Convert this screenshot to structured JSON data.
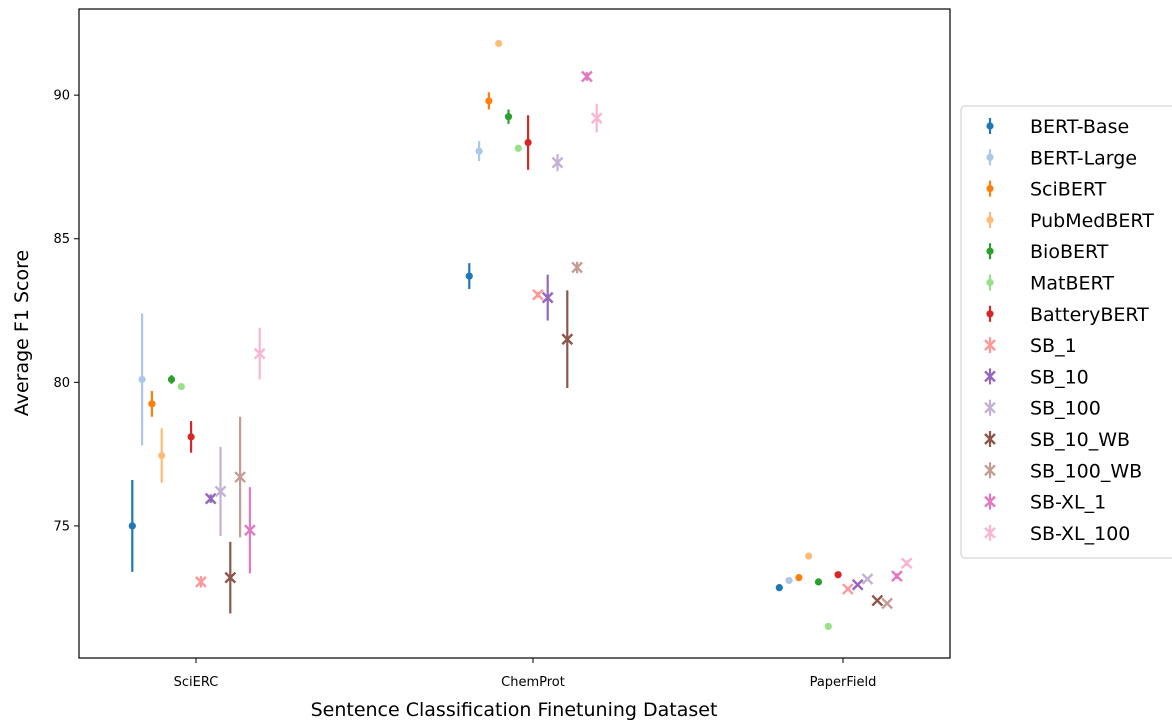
{
  "chart_data": {
    "type": "scatter",
    "title": "",
    "xlabel": "Sentence Classification Finetuning Dataset",
    "ylabel": "Average F1 Score",
    "categories": [
      "SciERC",
      "ChemProt",
      "PaperField"
    ],
    "ylim": [
      70.4,
      93.0
    ],
    "yticks": [
      75,
      80,
      85,
      90
    ],
    "grid": false,
    "legend_position": "right",
    "series": [
      {
        "name": "BERT-Base",
        "color": "#1f77b4",
        "marker": "circle",
        "values": [
          75.0,
          83.7,
          72.85
        ],
        "errors": [
          1.6,
          0.45,
          0.05
        ]
      },
      {
        "name": "BERT-Large",
        "color": "#aec7e8",
        "marker": "circle",
        "values": [
          80.1,
          88.05,
          73.1
        ],
        "errors": [
          2.3,
          0.35,
          0.05
        ]
      },
      {
        "name": "SciBERT",
        "color": "#ff7f0e",
        "marker": "circle",
        "values": [
          79.25,
          89.8,
          73.2
        ],
        "errors": [
          0.45,
          0.3,
          0.05
        ]
      },
      {
        "name": "PubMedBERT",
        "color": "#ffbb78",
        "marker": "circle",
        "values": [
          77.45,
          91.8,
          73.95
        ],
        "errors": [
          0.95,
          0.05,
          0.05
        ]
      },
      {
        "name": "BioBERT",
        "color": "#2ca02c",
        "marker": "circle",
        "values": [
          80.1,
          89.25,
          73.05
        ],
        "errors": [
          0.15,
          0.25,
          0.05
        ]
      },
      {
        "name": "MatBERT",
        "color": "#98df8a",
        "marker": "circle",
        "values": [
          79.85,
          88.15,
          71.5
        ],
        "errors": [
          0.05,
          0.05,
          0.05
        ]
      },
      {
        "name": "BatteryBERT",
        "color": "#d62728",
        "marker": "circle",
        "values": [
          78.1,
          88.35,
          73.3
        ],
        "errors": [
          0.55,
          0.95,
          0.05
        ]
      },
      {
        "name": "SB_1",
        "color": "#ff9896",
        "marker": "x",
        "values": [
          73.05,
          83.05,
          72.8
        ],
        "errors": [
          0.2,
          0.1,
          0.05
        ]
      },
      {
        "name": "SB_10",
        "color": "#9467bd",
        "marker": "x",
        "values": [
          75.95,
          82.95,
          72.95
        ],
        "errors": [
          0.15,
          0.8,
          0.05
        ]
      },
      {
        "name": "SB_100",
        "color": "#c5b0d5",
        "marker": "x",
        "values": [
          76.2,
          87.65,
          73.15
        ],
        "errors": [
          1.55,
          0.3,
          0.05
        ]
      },
      {
        "name": "SB_10_WB",
        "color": "#8c564b",
        "marker": "x",
        "values": [
          73.2,
          81.5,
          72.4
        ],
        "errors": [
          1.25,
          1.7,
          0.05
        ]
      },
      {
        "name": "SB_100_WB",
        "color": "#c49c94",
        "marker": "x",
        "values": [
          76.7,
          84.0,
          72.3
        ],
        "errors": [
          2.1,
          0.2,
          0.05
        ]
      },
      {
        "name": "SB-XL_1",
        "color": "#e377c2",
        "marker": "x",
        "values": [
          74.85,
          90.65,
          73.25
        ],
        "errors": [
          1.5,
          0.15,
          0.1
        ]
      },
      {
        "name": "SB-XL_100",
        "color": "#f7b6d2",
        "marker": "x",
        "values": [
          81.0,
          89.2,
          73.7
        ],
        "errors": [
          0.9,
          0.5,
          0.1
        ]
      }
    ]
  }
}
